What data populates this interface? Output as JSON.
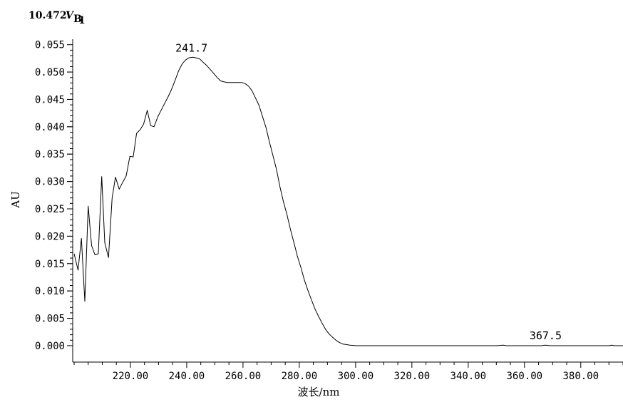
{
  "chart_data": {
    "type": "line",
    "corner_label": {
      "prefix": "10.472",
      "symbol": "V",
      "subscript": "B",
      "subsub": "1"
    },
    "xlabel": "波长/nm",
    "ylabel": "AU",
    "xlim": [
      199.5,
      395
    ],
    "ylim": [
      -0.003,
      0.056
    ],
    "x_ticks": [
      220,
      240,
      260,
      280,
      300,
      320,
      340,
      360,
      380
    ],
    "x_tick_labels": [
      "220.00",
      "240.00",
      "260.00",
      "280.00",
      "300.00",
      "320.00",
      "340.00",
      "360.00",
      "380.00"
    ],
    "y_ticks": [
      0,
      0.005,
      0.01,
      0.015,
      0.02,
      0.025,
      0.03,
      0.035,
      0.04,
      0.045,
      0.05,
      0.055
    ],
    "y_tick_labels": [
      "0.000",
      "0.005",
      "0.010",
      "0.015",
      "0.020",
      "0.025",
      "0.030",
      "0.035",
      "0.040",
      "0.045",
      "0.050",
      "0.055"
    ],
    "grid": false,
    "series": [
      {
        "x": [
          200.0,
          201.4,
          202.6,
          203.8,
          205.0,
          206.2,
          207.4,
          208.6,
          209.8,
          210.9,
          212.2,
          213.5,
          214.7,
          216.0,
          217.2,
          218.5,
          219.8,
          221.0,
          222.2,
          223.5,
          224.7,
          226.0,
          227.2,
          228.4,
          229.7,
          230.9,
          232.2,
          233.4,
          234.6,
          235.9,
          237.1,
          238.4,
          239.6,
          240.8,
          242.1,
          243.3,
          244.6,
          245.8,
          247.1,
          248.3,
          249.5,
          250.8,
          252.0,
          253.3,
          254.5,
          255.7,
          257.0,
          258.2,
          259.5,
          260.7,
          262.0,
          263.2,
          264.4,
          265.7,
          266.9,
          268.2,
          269.4,
          270.6,
          271.9,
          273.1,
          274.4,
          275.6,
          276.8,
          278.1,
          279.3,
          280.6,
          281.8,
          283.0,
          284.3,
          285.5,
          286.8,
          288.0,
          289.3,
          290.5,
          291.7,
          293.0,
          294.2,
          295.5,
          296.7,
          297.9,
          299.2,
          300.4,
          301.7,
          302.9,
          304.1,
          305.4,
          306.6,
          307.9,
          309.1,
          310.4,
          312.8,
          316.5,
          320.2,
          330.0,
          340.0,
          350.0,
          352.5,
          353.5,
          360.0,
          366.0,
          367.5,
          369.0,
          375.0,
          385.0,
          390.0,
          391.0,
          392.0,
          395.0
        ],
        "y": [
          0.0168,
          0.0138,
          0.0196,
          0.0081,
          0.0255,
          0.0183,
          0.0166,
          0.0168,
          0.0309,
          0.0188,
          0.0161,
          0.027,
          0.0308,
          0.0286,
          0.0298,
          0.031,
          0.0346,
          0.0345,
          0.0388,
          0.0395,
          0.0405,
          0.043,
          0.0402,
          0.04,
          0.0418,
          0.043,
          0.0443,
          0.0455,
          0.0468,
          0.0485,
          0.0502,
          0.0515,
          0.0522,
          0.0526,
          0.0527,
          0.0526,
          0.0524,
          0.0518,
          0.0512,
          0.0505,
          0.0498,
          0.049,
          0.0484,
          0.0482,
          0.0481,
          0.0481,
          0.0481,
          0.0481,
          0.0481,
          0.0479,
          0.0474,
          0.0466,
          0.0453,
          0.0439,
          0.0419,
          0.0398,
          0.0372,
          0.0348,
          0.0322,
          0.0291,
          0.0262,
          0.024,
          0.0214,
          0.0188,
          0.0164,
          0.0142,
          0.012,
          0.0102,
          0.0084,
          0.0068,
          0.0054,
          0.0042,
          0.003,
          0.0022,
          0.0016,
          0.001,
          0.0006,
          0.0003,
          0.0002,
          0.0001,
          5e-05,
          0.0,
          0.0,
          0.0,
          0.0,
          0.0,
          0.0,
          0.0,
          0.0,
          0.0,
          0.0,
          0.0,
          0.0,
          0.0,
          0.0,
          0.0,
          0.0001,
          0.0,
          0.0,
          0.0,
          0.0001,
          0.0,
          0.0,
          0.0,
          0.0,
          0.0001,
          0.0,
          0.0
        ]
      }
    ],
    "annotations": [
      {
        "text": "241.7",
        "x": 241.7,
        "y": 0.0527
      },
      {
        "text": "367.5",
        "x": 367.5,
        "y": 0.0001
      }
    ]
  }
}
